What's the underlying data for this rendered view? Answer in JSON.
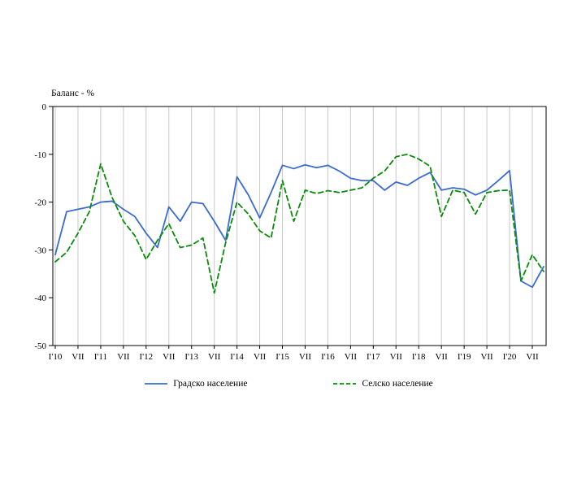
{
  "chart": {
    "colors": {
      "grid": "#c9c9c9",
      "axis": "#000000"
    },
    "y_ticks": [
      {
        "value": 0,
        "label": "0"
      },
      {
        "value": -10,
        "label": "-10"
      },
      {
        "value": -20,
        "label": "-20"
      },
      {
        "value": -30,
        "label": "-30"
      },
      {
        "value": -40,
        "label": "-40"
      },
      {
        "value": -50,
        "label": "-50"
      }
    ]
  },
  "chart_data": {
    "type": "line",
    "title": "",
    "ylabel": "Баланс - %",
    "ylim": [
      -50,
      0
    ],
    "grid": "vertical",
    "legend_position": "bottom",
    "x_tick_labels": [
      "I'10",
      "VII",
      "I'11",
      "VII",
      "I'12",
      "VII",
      "I'13",
      "VII",
      "I'14",
      "VII",
      "I'15",
      "VII",
      "I'16",
      "VII",
      "I'17",
      "VII",
      "I'18",
      "VII",
      "I'19",
      "VII",
      "I'20",
      "VII"
    ],
    "x": [
      "I'10",
      "IV'10",
      "VII'10",
      "X'10",
      "I'11",
      "IV'11",
      "VII'11",
      "X'11",
      "I'12",
      "IV'12",
      "VII'12",
      "X'12",
      "I'13",
      "IV'13",
      "VII'13",
      "X'13",
      "I'14",
      "IV'14",
      "VII'14",
      "X'14",
      "I'15",
      "IV'15",
      "VII'15",
      "X'15",
      "I'16",
      "IV'16",
      "VII'16",
      "X'16",
      "I'17",
      "IV'17",
      "VII'17",
      "X'17",
      "I'18",
      "IV'18",
      "VII'18",
      "X'18",
      "I'19",
      "IV'19",
      "VII'19",
      "X'19",
      "I'20",
      "IV'20",
      "VII'20",
      "X'20"
    ],
    "series": [
      {
        "name": "Градско население",
        "color": "#3a6bce",
        "style": "solid",
        "values": [
          -31,
          -22,
          -21.5,
          -21,
          -20,
          -19.8,
          -21.5,
          -23,
          -26.5,
          -29.5,
          -21,
          -24,
          -20,
          -20.3,
          -24,
          -28,
          -14.7,
          -18.5,
          -23.3,
          -18,
          -12.3,
          -13,
          -12.2,
          -12.8,
          -12.3,
          -13.5,
          -15,
          -15.5,
          -15.5,
          -17.5,
          -15.8,
          -16.5,
          -15,
          -13.8,
          -17.5,
          -17,
          -17.3,
          -18.5,
          -17.5,
          -15.5,
          -13.4,
          -36.5,
          -37.8,
          -33.5
        ]
      },
      {
        "name": "Селско население",
        "color": "#0a8a0a",
        "style": "dashed",
        "values": [
          -32.5,
          -30.5,
          -26.5,
          -22,
          -12,
          -19,
          -24,
          -27,
          -32,
          -28,
          -24.5,
          -29.5,
          -29,
          -27.5,
          -39,
          -28.5,
          -20,
          -22.5,
          -26,
          -27.5,
          -15.5,
          -24,
          -17.5,
          -18.2,
          -17.6,
          -18,
          -17.5,
          -17,
          -15,
          -13.5,
          -10.5,
          -10,
          -11,
          -12.5,
          -23,
          -17.5,
          -18,
          -22.5,
          -18,
          -17.6,
          -17.5,
          -36.5,
          -31,
          -34.5
        ]
      }
    ]
  }
}
